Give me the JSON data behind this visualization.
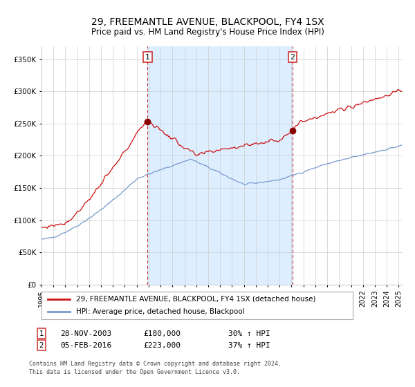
{
  "title": "29, FREEMANTLE AVENUE, BLACKPOOL, FY4 1SX",
  "subtitle": "Price paid vs. HM Land Registry's House Price Index (HPI)",
  "legend_property": "29, FREEMANTLE AVENUE, BLACKPOOL, FY4 1SX (detached house)",
  "legend_hpi": "HPI: Average price, detached house, Blackpool",
  "footer_line1": "Contains HM Land Registry data © Crown copyright and database right 2024.",
  "footer_line2": "This data is licensed under the Open Government Licence v3.0.",
  "hpi_color": "#7799cc",
  "property_color": "#cc1111",
  "sale_dot_color": "#880000",
  "shaded_region_color": "#ddeeff",
  "vline_color": "#cc3333",
  "background_color": "#ffffff",
  "grid_color": "#cccccc",
  "ylim": [
    0,
    370000
  ],
  "yticks": [
    0,
    50000,
    100000,
    150000,
    200000,
    250000,
    300000,
    350000
  ],
  "ytick_labels": [
    "£0",
    "£50K",
    "£100K",
    "£150K",
    "£200K",
    "£250K",
    "£300K",
    "£350K"
  ],
  "sale1_year": 2003,
  "sale1_month": 11,
  "sale1_day": 28,
  "sale2_year": 2016,
  "sale2_month": 2,
  "sale2_day": 5,
  "ann1_text": "28-NOV-2003",
  "ann1_price": "£180,000",
  "ann1_hpi": "30% ↑ HPI",
  "ann2_text": "05-FEB-2016",
  "ann2_price": "£223,000",
  "ann2_hpi": "37% ↑ HPI"
}
